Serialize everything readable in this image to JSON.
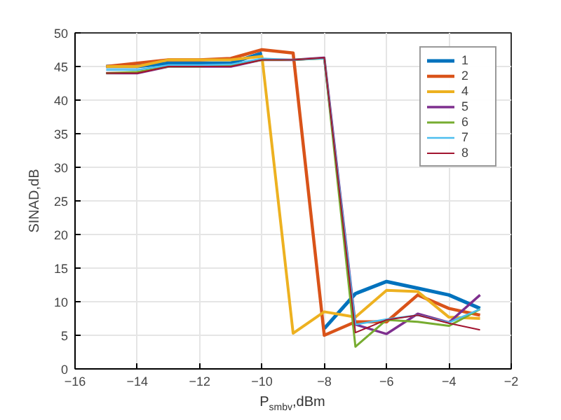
{
  "chart_data": {
    "type": "line",
    "xlabel": "P$_{smbv}$,dBm",
    "ylabel": "SINAD,dB",
    "x": [
      -15,
      -14,
      -13,
      -12,
      -11,
      -10,
      -9,
      -8,
      -7,
      -6,
      -5,
      -4,
      -3
    ],
    "xlim": [
      -16,
      -2
    ],
    "xticks": [
      -16,
      -14,
      -12,
      -10,
      -8,
      -6,
      -4,
      -2
    ],
    "ylim": [
      0,
      50
    ],
    "yticks": [
      0,
      5,
      10,
      15,
      20,
      25,
      30,
      35,
      40,
      45,
      50
    ],
    "grid": true,
    "legend": "top right",
    "marker": "none",
    "line_style": "solid",
    "series": [
      {
        "name": "1",
        "color": "#0072bd",
        "values": [
          45,
          45,
          45.5,
          45.5,
          45.5,
          47,
          null,
          6,
          11.2,
          13,
          12,
          11,
          9
        ]
      },
      {
        "name": "2",
        "color": "#d95319",
        "values": [
          45,
          45.5,
          46,
          46,
          46.2,
          47.5,
          47,
          5,
          7,
          7,
          11,
          9,
          8
        ]
      },
      {
        "name": "4",
        "color": "#edb120",
        "values": [
          45,
          45,
          46,
          46,
          46,
          46.5,
          5.3,
          8.5,
          7.7,
          11.7,
          11.5,
          7.7,
          7.5
        ]
      },
      {
        "name": "5",
        "color": "#7e2f8e",
        "values": [
          44,
          44,
          45,
          45,
          45,
          46,
          46,
          46.3,
          6.6,
          5.2,
          8.2,
          6.9,
          11
        ]
      },
      {
        "name": "6",
        "color": "#77ac30",
        "values": [
          44,
          44.2,
          45,
          45,
          45.2,
          46,
          46,
          46.2,
          3.3,
          7.3,
          7,
          6.4,
          8.9
        ]
      },
      {
        "name": "7",
        "color": "#4dbeee",
        "values": [
          44.5,
          44.5,
          45.2,
          45.2,
          45.3,
          46.2,
          46,
          46.2,
          6.6,
          7.4,
          8,
          6.9,
          8.9
        ]
      },
      {
        "name": "8",
        "color": "#a2142f",
        "values": [
          44,
          44,
          45,
          45,
          45,
          46,
          46,
          46.3,
          5.4,
          7.3,
          8,
          6.8,
          5.8
        ]
      }
    ]
  }
}
